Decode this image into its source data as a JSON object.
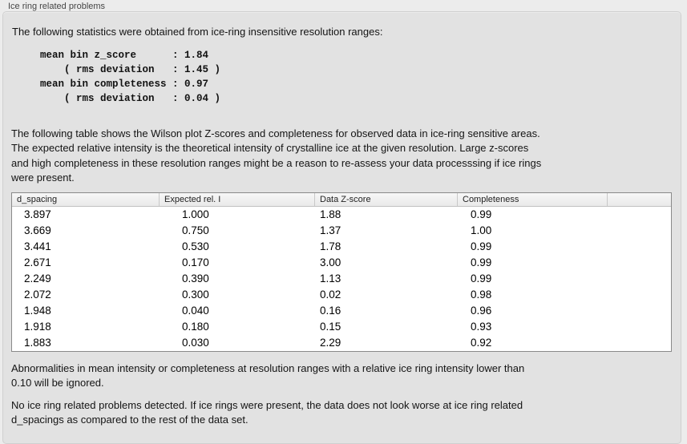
{
  "panel": {
    "title": "Ice ring related problems"
  },
  "intro": {
    "text": "The following statistics were obtained from ice-ring insensitive resolution ranges:"
  },
  "stats_block": {
    "text": "mean bin z_score      : 1.84\n    ( rms deviation   : 1.45 )\nmean bin completeness : 0.97\n    ( rms deviation   : 0.04 )",
    "mean_bin_z_score": "1.84",
    "z_score_rms_deviation": "1.45",
    "mean_bin_completeness": "0.97",
    "completeness_rms_deviation": "0.04"
  },
  "description": {
    "text": "The following table shows the Wilson plot Z-scores and completeness for observed data in ice-ring sensitive areas.\nThe expected relative intensity is the theoretical intensity of crystalline ice at the given resolution. Large z-scores\nand high completeness in these resolution ranges might be a reason to re-assess your data processsing if ice rings\nwere present."
  },
  "table": {
    "columns": [
      "d_spacing",
      "Expected rel. I",
      "Data Z-score",
      "Completeness"
    ],
    "rows": [
      [
        "3.897",
        "1.000",
        "1.88",
        "0.99"
      ],
      [
        "3.669",
        "0.750",
        "1.37",
        "1.00"
      ],
      [
        "3.441",
        "0.530",
        "1.78",
        "0.99"
      ],
      [
        "2.671",
        "0.170",
        "3.00",
        "0.99"
      ],
      [
        "2.249",
        "0.390",
        "1.13",
        "0.99"
      ],
      [
        "2.072",
        "0.300",
        "0.02",
        "0.98"
      ],
      [
        "1.948",
        "0.040",
        "0.16",
        "0.96"
      ],
      [
        "1.918",
        "0.180",
        "0.15",
        "0.93"
      ],
      [
        "1.883",
        "0.030",
        "2.29",
        "0.92"
      ]
    ]
  },
  "footer": {
    "ignore_note": "Abnormalities in mean intensity or completeness at resolution ranges with a relative ice ring intensity lower than\n0.10 will be ignored.",
    "conclusion": "No ice ring related problems detected. If ice rings were present, the data does not look worse at ice ring related\nd_spacings as compared to the rest of the data set."
  },
  "colors": {
    "page_bg": "#ececec",
    "groupbox_bg": "#e2e2e2",
    "table_bg": "#ffffff",
    "header_bg": "#eeeeee",
    "text": "#141414"
  }
}
